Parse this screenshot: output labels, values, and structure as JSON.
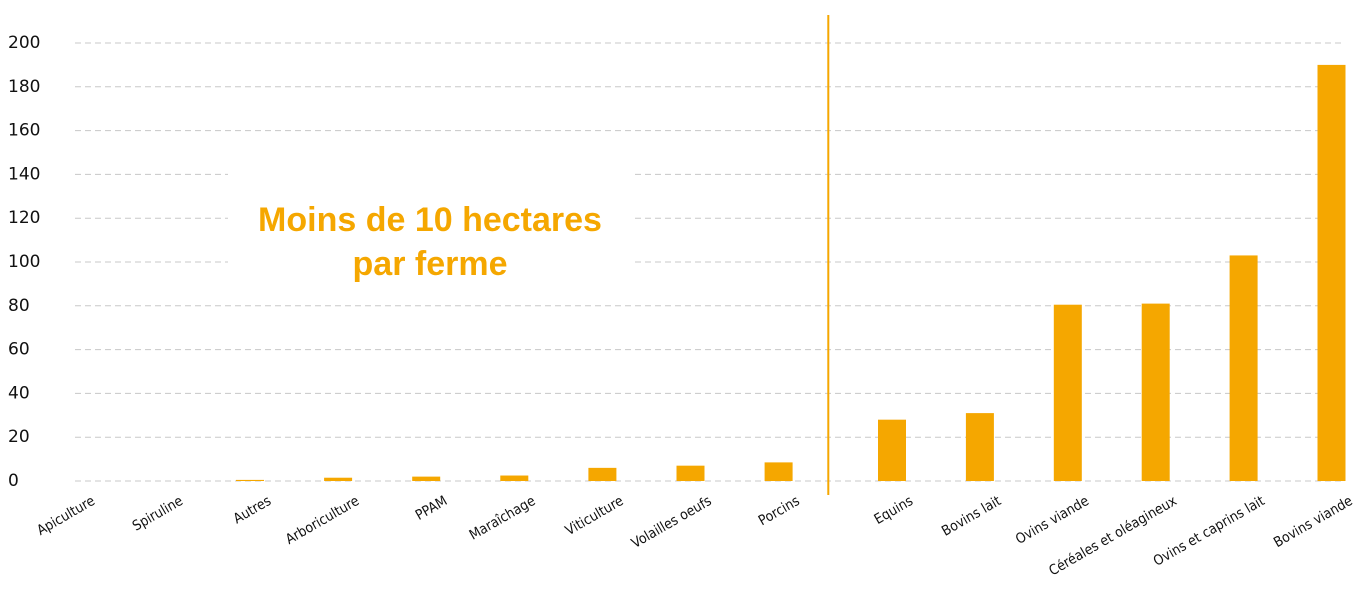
{
  "chart_data": {
    "type": "bar",
    "categories": [
      "Apiculture",
      "Spiruline",
      "Autres",
      "Arboriculture",
      "PPAM",
      "Maraîchage",
      "Viticulture",
      "Volailles oeufs",
      "Porcins",
      "Equins",
      "Bovins lait",
      "Ovins viande",
      "Céréales et oléagineux",
      "Ovins et caprins lait",
      "Bovins viande"
    ],
    "values": [
      0,
      0,
      0.5,
      1.5,
      2,
      2.5,
      6,
      7,
      8.5,
      28,
      31,
      80.5,
      81,
      103,
      190
    ],
    "color": "#f5a700",
    "ylim": [
      0,
      200
    ],
    "yticks": [
      0,
      20,
      40,
      60,
      80,
      100,
      120,
      140,
      160,
      180,
      200
    ],
    "grid": true,
    "annotation": [
      "Moins de 10 hectares",
      "par ferme"
    ]
  }
}
